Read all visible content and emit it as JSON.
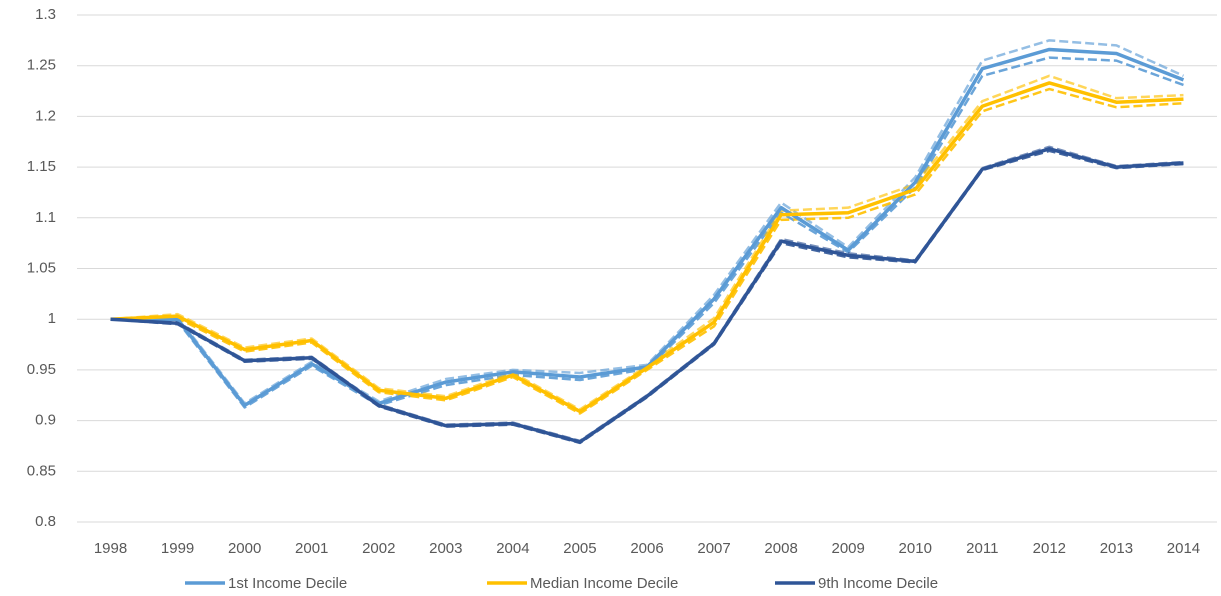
{
  "chart_data": {
    "type": "line",
    "categories": [
      "1998",
      "1999",
      "2000",
      "2001",
      "2002",
      "2003",
      "2004",
      "2005",
      "2006",
      "2007",
      "2008",
      "2009",
      "2010",
      "2011",
      "2012",
      "2013",
      "2014"
    ],
    "ylim": [
      0.8,
      1.3
    ],
    "yticks": [
      0.8,
      0.85,
      0.9,
      0.95,
      1,
      1.05,
      1.1,
      1.15,
      1.2,
      1.25,
      1.3
    ],
    "grid": true,
    "legend": "bottom",
    "series": [
      {
        "name": "1st Income Decile",
        "color": "#5b9bd5",
        "values": [
          1.0,
          1.0,
          0.915,
          0.956,
          0.917,
          0.938,
          0.948,
          0.943,
          0.953,
          1.02,
          1.11,
          1.068,
          1.135,
          1.247,
          1.266,
          1.262,
          1.236
        ],
        "lower": [
          1.0,
          0.998,
          0.913,
          0.954,
          0.915,
          0.935,
          0.945,
          0.94,
          0.951,
          1.016,
          1.105,
          1.066,
          1.13,
          1.24,
          1.258,
          1.255,
          1.231
        ],
        "upper": [
          1.0,
          1.002,
          0.917,
          0.958,
          0.919,
          0.941,
          0.95,
          0.947,
          0.955,
          1.024,
          1.115,
          1.071,
          1.14,
          1.255,
          1.275,
          1.27,
          1.24
        ]
      },
      {
        "name": "Median Income Decile",
        "color": "#ffc000",
        "values": [
          1.0,
          1.003,
          0.97,
          0.979,
          0.93,
          0.922,
          0.945,
          0.909,
          0.952,
          0.997,
          1.103,
          1.105,
          1.128,
          1.21,
          1.233,
          1.214,
          1.217
        ],
        "lower": [
          1.0,
          1.001,
          0.968,
          0.977,
          0.928,
          0.92,
          0.943,
          0.907,
          0.95,
          0.993,
          1.098,
          1.1,
          1.123,
          1.205,
          1.227,
          1.209,
          1.213
        ],
        "upper": [
          1.0,
          1.005,
          0.972,
          0.981,
          0.932,
          0.924,
          0.947,
          0.911,
          0.954,
          1.001,
          1.107,
          1.11,
          1.133,
          1.215,
          1.24,
          1.218,
          1.221
        ]
      },
      {
        "name": "9th Income Decile",
        "color": "#2f5597",
        "values": [
          1.0,
          0.996,
          0.959,
          0.962,
          0.915,
          0.895,
          0.897,
          0.879,
          0.924,
          0.976,
          1.077,
          1.063,
          1.057,
          1.148,
          1.168,
          1.15,
          1.154
        ],
        "lower": [
          1.0,
          0.995,
          0.958,
          0.961,
          0.914,
          0.894,
          0.896,
          0.878,
          0.923,
          0.975,
          1.075,
          1.061,
          1.056,
          1.147,
          1.166,
          1.149,
          1.153
        ],
        "upper": [
          1.0,
          0.997,
          0.96,
          0.963,
          0.916,
          0.896,
          0.898,
          0.88,
          0.925,
          0.977,
          1.079,
          1.065,
          1.058,
          1.149,
          1.17,
          1.151,
          1.155
        ]
      }
    ]
  }
}
